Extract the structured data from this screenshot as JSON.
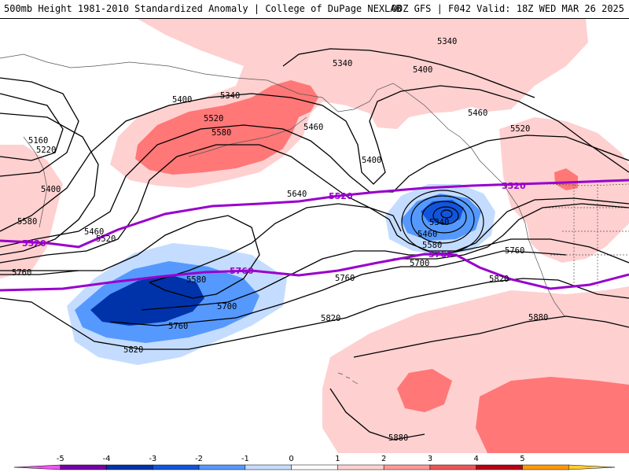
{
  "header": {
    "title_left": "500mb Height 1981-2010 Standardized Anomaly | College of DuPage NEXLAB",
    "title_right": "00Z GFS | F042 Valid: 18Z WED MAR 26 2025"
  },
  "contours": {
    "c5160": "5160",
    "c5220": "5220",
    "c5340": "5340",
    "c5400": "5400",
    "c5460": "5460",
    "c5520": "5520",
    "c5580": "5580",
    "c5640": "5640",
    "c5700": "5700",
    "c5760": "5760",
    "c5820": "5820",
    "c5880": "5880"
  },
  "highlight": {
    "h5520": "5520",
    "h5760": "5760"
  },
  "colorbar": {
    "ticks": [
      "-5",
      "-4",
      "-3",
      "-2",
      "-1",
      "0",
      "1",
      "2",
      "3",
      "4",
      "5"
    ],
    "colors": [
      "#ee55ee",
      "#7700aa",
      "#0033aa",
      "#1155dd",
      "#5599ff",
      "#c4dcff",
      "#ffffff",
      "#ffd0d0",
      "#ff9999",
      "#ee5555",
      "#bb0011",
      "#ff9900",
      "#ffcc33"
    ],
    "highlight_color": "#9900cc",
    "warm_anomaly_color": "#ffcccc",
    "cold_anomaly_color": "#3366ee"
  }
}
